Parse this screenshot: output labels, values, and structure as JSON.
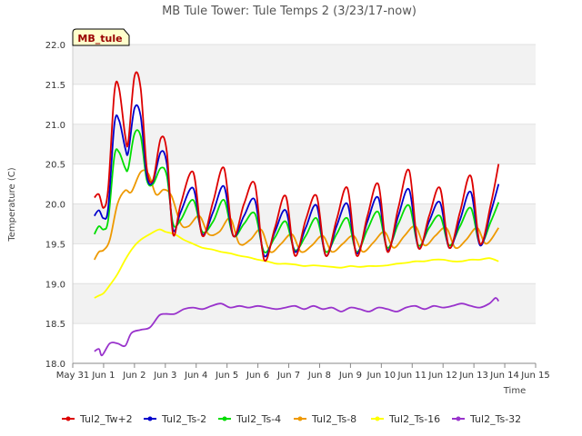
{
  "chart_data": {
    "type": "line",
    "title": "MB Tule Tower: Tule Temps 2 (3/23/17-now)",
    "xlabel": "Time",
    "ylabel": "Temperature (C)",
    "badge": "MB_tule",
    "xlim": [
      0,
      15
    ],
    "ylim": [
      18.0,
      22.0
    ],
    "xticks": [
      0,
      1,
      2,
      3,
      4,
      5,
      6,
      7,
      8,
      9,
      10,
      11,
      12,
      13,
      14,
      15
    ],
    "xtick_labels": [
      "May 31",
      "Jun 1",
      "Jun 2",
      "Jun 3",
      "Jun 4",
      "Jun 5",
      "Jun 6",
      "Jun 7",
      "Jun 8",
      "Jun 9",
      "Jun 10",
      "Jun 11",
      "Jun 12",
      "Jun 13",
      "Jun 14",
      "Jun 15"
    ],
    "yticks": [
      18.0,
      18.5,
      19.0,
      19.5,
      20.0,
      20.5,
      21.0,
      21.5,
      22.0
    ],
    "ytick_labels": [
      "18.0",
      "18.5",
      "19.0",
      "19.5",
      "20.0",
      "20.5",
      "21.0",
      "21.5",
      "22.0"
    ],
    "series": [
      {
        "name": "Tul2_Tw+2",
        "color": "#dd0000",
        "x": [
          0.7,
          0.85,
          1.0,
          1.15,
          1.35,
          1.5,
          1.7,
          1.8,
          2.0,
          2.2,
          2.4,
          2.6,
          2.85,
          3.05,
          3.25,
          3.5,
          3.9,
          4.2,
          4.55,
          4.9,
          5.2,
          5.55,
          5.9,
          6.2,
          6.55,
          6.9,
          7.2,
          7.55,
          7.9,
          8.2,
          8.55,
          8.9,
          9.2,
          9.55,
          9.9,
          10.2,
          10.55,
          10.9,
          11.2,
          11.55,
          11.9,
          12.2,
          12.55,
          12.9,
          13.2,
          13.55,
          13.8
        ],
        "y": [
          20.08,
          20.12,
          19.95,
          20.2,
          21.4,
          21.45,
          20.85,
          20.78,
          21.6,
          21.45,
          20.45,
          20.3,
          20.82,
          20.65,
          19.62,
          20.0,
          20.4,
          19.6,
          20.03,
          20.45,
          19.6,
          20.0,
          20.25,
          19.3,
          19.7,
          20.1,
          19.35,
          19.8,
          20.1,
          19.35,
          19.8,
          20.2,
          19.35,
          19.85,
          20.25,
          19.4,
          19.95,
          20.42,
          19.45,
          19.85,
          20.2,
          19.45,
          19.9,
          20.35,
          19.5,
          20.0,
          20.5
        ]
      },
      {
        "name": "Tul2_Ts-2",
        "color": "#0000cc",
        "x": [
          0.7,
          0.85,
          1.0,
          1.15,
          1.35,
          1.5,
          1.7,
          1.8,
          2.0,
          2.2,
          2.4,
          2.6,
          2.85,
          3.05,
          3.25,
          3.5,
          3.9,
          4.2,
          4.55,
          4.9,
          5.2,
          5.55,
          5.9,
          6.2,
          6.55,
          6.9,
          7.2,
          7.55,
          7.9,
          8.2,
          8.55,
          8.9,
          9.2,
          9.55,
          9.9,
          10.2,
          10.55,
          10.9,
          11.2,
          11.55,
          11.9,
          12.2,
          12.55,
          12.9,
          13.2,
          13.55,
          13.8
        ],
        "y": [
          19.85,
          19.92,
          19.82,
          19.95,
          21.0,
          21.05,
          20.7,
          20.65,
          21.2,
          21.1,
          20.35,
          20.28,
          20.65,
          20.5,
          19.68,
          19.9,
          20.2,
          19.62,
          19.9,
          20.22,
          19.6,
          19.85,
          20.05,
          19.35,
          19.65,
          19.92,
          19.4,
          19.7,
          19.98,
          19.35,
          19.72,
          20.0,
          19.38,
          19.78,
          20.08,
          19.42,
          19.85,
          20.18,
          19.45,
          19.78,
          20.02,
          19.45,
          19.8,
          20.15,
          19.48,
          19.9,
          20.25
        ]
      },
      {
        "name": "Tul2_Ts-4",
        "color": "#00dd00",
        "x": [
          0.7,
          0.85,
          1.0,
          1.15,
          1.35,
          1.5,
          1.7,
          1.8,
          2.0,
          2.2,
          2.4,
          2.6,
          2.85,
          3.05,
          3.25,
          3.5,
          3.9,
          4.2,
          4.55,
          4.9,
          5.2,
          5.55,
          5.9,
          6.2,
          6.55,
          6.9,
          7.2,
          7.55,
          7.9,
          8.2,
          8.55,
          8.9,
          9.2,
          9.55,
          9.9,
          10.2,
          10.55,
          10.9,
          11.2,
          11.55,
          11.9,
          12.2,
          12.55,
          12.9,
          13.2,
          13.55,
          13.8
        ],
        "y": [
          19.62,
          19.72,
          19.68,
          19.8,
          20.6,
          20.65,
          20.45,
          20.45,
          20.88,
          20.85,
          20.3,
          20.25,
          20.45,
          20.35,
          19.75,
          19.8,
          20.05,
          19.65,
          19.78,
          20.05,
          19.6,
          19.75,
          19.88,
          19.4,
          19.58,
          19.78,
          19.42,
          19.6,
          19.82,
          19.4,
          19.62,
          19.82,
          19.4,
          19.68,
          19.9,
          19.45,
          19.75,
          19.98,
          19.48,
          19.7,
          19.85,
          19.48,
          19.72,
          19.95,
          19.5,
          19.78,
          20.02
        ]
      },
      {
        "name": "Tul2_Ts-8",
        "color": "#ee9900",
        "x": [
          0.7,
          0.85,
          1.0,
          1.2,
          1.45,
          1.7,
          1.9,
          2.2,
          2.45,
          2.7,
          2.95,
          3.2,
          3.5,
          3.75,
          4.1,
          4.4,
          4.75,
          5.1,
          5.4,
          5.75,
          6.1,
          6.4,
          6.75,
          7.1,
          7.4,
          7.75,
          8.1,
          8.4,
          8.75,
          9.1,
          9.4,
          9.75,
          10.1,
          10.4,
          10.75,
          11.1,
          11.4,
          11.75,
          12.1,
          12.4,
          12.75,
          13.1,
          13.4,
          13.8
        ],
        "y": [
          19.3,
          19.4,
          19.42,
          19.55,
          20.0,
          20.17,
          20.15,
          20.4,
          20.38,
          20.12,
          20.18,
          20.1,
          19.75,
          19.72,
          19.85,
          19.62,
          19.65,
          19.82,
          19.5,
          19.55,
          19.68,
          19.4,
          19.5,
          19.62,
          19.4,
          19.48,
          19.6,
          19.4,
          19.5,
          19.6,
          19.4,
          19.52,
          19.65,
          19.45,
          19.6,
          19.72,
          19.48,
          19.6,
          19.7,
          19.45,
          19.55,
          19.7,
          19.5,
          19.7
        ]
      },
      {
        "name": "Tul2_Ts-16",
        "color": "#ffff00",
        "x": [
          0.7,
          0.85,
          1.0,
          1.2,
          1.45,
          1.7,
          1.95,
          2.2,
          2.5,
          2.8,
          3.0,
          3.3,
          3.6,
          3.9,
          4.2,
          4.5,
          4.8,
          5.1,
          5.4,
          5.7,
          6.0,
          6.3,
          6.6,
          6.9,
          7.2,
          7.5,
          7.8,
          8.1,
          8.4,
          8.7,
          9.0,
          9.3,
          9.6,
          9.9,
          10.2,
          10.5,
          10.8,
          11.1,
          11.4,
          11.7,
          12.0,
          12.3,
          12.6,
          12.9,
          13.2,
          13.5,
          13.8
        ],
        "y": [
          18.82,
          18.85,
          18.88,
          18.98,
          19.12,
          19.3,
          19.45,
          19.55,
          19.62,
          19.68,
          19.65,
          19.62,
          19.55,
          19.5,
          19.45,
          19.43,
          19.4,
          19.38,
          19.35,
          19.33,
          19.3,
          19.28,
          19.25,
          19.25,
          19.24,
          19.22,
          19.23,
          19.22,
          19.21,
          19.2,
          19.22,
          19.21,
          19.22,
          19.22,
          19.23,
          19.25,
          19.26,
          19.28,
          19.28,
          19.3,
          19.3,
          19.28,
          19.28,
          19.3,
          19.3,
          19.32,
          19.28
        ]
      },
      {
        "name": "Tul2_Ts-32",
        "color": "#9933cc",
        "x": [
          0.7,
          0.85,
          0.95,
          1.2,
          1.45,
          1.7,
          1.9,
          2.2,
          2.5,
          2.8,
          3.0,
          3.3,
          3.6,
          3.9,
          4.2,
          4.5,
          4.8,
          5.1,
          5.4,
          5.7,
          6.0,
          6.3,
          6.6,
          6.9,
          7.2,
          7.5,
          7.8,
          8.1,
          8.4,
          8.7,
          9.0,
          9.3,
          9.6,
          9.9,
          10.2,
          10.5,
          10.8,
          11.1,
          11.4,
          11.7,
          12.0,
          12.3,
          12.6,
          12.9,
          13.2,
          13.5,
          13.7,
          13.8
        ],
        "y": [
          18.15,
          18.18,
          18.1,
          18.25,
          18.25,
          18.22,
          18.38,
          18.42,
          18.45,
          18.6,
          18.62,
          18.62,
          18.68,
          18.7,
          18.68,
          18.72,
          18.75,
          18.7,
          18.72,
          18.7,
          18.72,
          18.7,
          18.68,
          18.7,
          18.72,
          18.68,
          18.72,
          18.68,
          18.7,
          18.65,
          18.7,
          18.68,
          18.65,
          18.7,
          18.68,
          18.65,
          18.7,
          18.72,
          18.68,
          18.72,
          18.7,
          18.72,
          18.75,
          18.72,
          18.7,
          18.75,
          18.82,
          18.78
        ]
      }
    ]
  }
}
